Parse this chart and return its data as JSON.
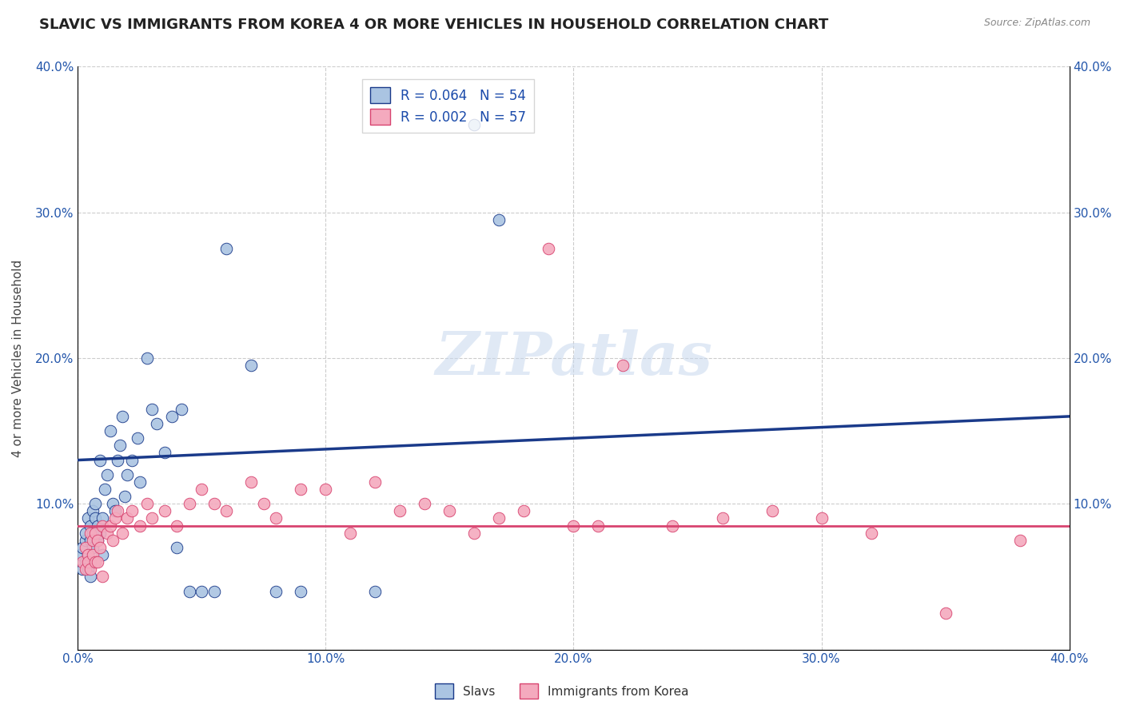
{
  "title": "SLAVIC VS IMMIGRANTS FROM KOREA 4 OR MORE VEHICLES IN HOUSEHOLD CORRELATION CHART",
  "source": "Source: ZipAtlas.com",
  "ylabel": "4 or more Vehicles in Household",
  "xlim": [
    0.0,
    0.4
  ],
  "ylim": [
    0.0,
    0.4
  ],
  "xtick_labels": [
    "0.0%",
    "10.0%",
    "20.0%",
    "30.0%",
    "40.0%"
  ],
  "xtick_vals": [
    0.0,
    0.1,
    0.2,
    0.3,
    0.4
  ],
  "ytick_labels_left": [
    "",
    "10.0%",
    "20.0%",
    "30.0%",
    "40.0%"
  ],
  "ytick_labels_right": [
    "",
    "10.0%",
    "20.0%",
    "30.0%",
    "40.0%"
  ],
  "ytick_vals": [
    0.0,
    0.1,
    0.2,
    0.3,
    0.4
  ],
  "slavs_R": 0.064,
  "slavs_N": 54,
  "korea_R": 0.002,
  "korea_N": 57,
  "slavs_color": "#aac4e2",
  "korea_color": "#f4aabe",
  "slavs_line_color": "#1a3a8a",
  "korea_line_color": "#d84470",
  "legend_text_color": "#1a4aaa",
  "watermark": "ZIPatlas",
  "title_fontsize": 13,
  "slavs_x": [
    0.001,
    0.002,
    0.002,
    0.003,
    0.003,
    0.003,
    0.004,
    0.004,
    0.004,
    0.005,
    0.005,
    0.005,
    0.005,
    0.006,
    0.006,
    0.006,
    0.007,
    0.007,
    0.008,
    0.008,
    0.009,
    0.009,
    0.01,
    0.01,
    0.011,
    0.012,
    0.013,
    0.014,
    0.015,
    0.016,
    0.017,
    0.018,
    0.019,
    0.02,
    0.022,
    0.024,
    0.025,
    0.028,
    0.03,
    0.032,
    0.035,
    0.038,
    0.04,
    0.042,
    0.045,
    0.05,
    0.055,
    0.06,
    0.07,
    0.08,
    0.09,
    0.12,
    0.16,
    0.17
  ],
  "slavs_y": [
    0.065,
    0.07,
    0.055,
    0.06,
    0.075,
    0.08,
    0.065,
    0.055,
    0.09,
    0.05,
    0.06,
    0.075,
    0.085,
    0.07,
    0.08,
    0.095,
    0.09,
    0.1,
    0.075,
    0.085,
    0.08,
    0.13,
    0.065,
    0.09,
    0.11,
    0.12,
    0.15,
    0.1,
    0.095,
    0.13,
    0.14,
    0.16,
    0.105,
    0.12,
    0.13,
    0.145,
    0.115,
    0.2,
    0.165,
    0.155,
    0.135,
    0.16,
    0.07,
    0.165,
    0.04,
    0.04,
    0.04,
    0.275,
    0.195,
    0.04,
    0.04,
    0.04,
    0.36,
    0.295
  ],
  "korea_x": [
    0.002,
    0.003,
    0.003,
    0.004,
    0.004,
    0.005,
    0.005,
    0.006,
    0.006,
    0.007,
    0.007,
    0.008,
    0.008,
    0.009,
    0.01,
    0.01,
    0.012,
    0.013,
    0.014,
    0.015,
    0.016,
    0.018,
    0.02,
    0.022,
    0.025,
    0.028,
    0.03,
    0.035,
    0.04,
    0.045,
    0.05,
    0.055,
    0.06,
    0.07,
    0.075,
    0.08,
    0.09,
    0.1,
    0.11,
    0.12,
    0.13,
    0.14,
    0.15,
    0.16,
    0.17,
    0.18,
    0.19,
    0.2,
    0.21,
    0.22,
    0.24,
    0.26,
    0.28,
    0.3,
    0.32,
    0.35,
    0.38
  ],
  "korea_y": [
    0.06,
    0.07,
    0.055,
    0.065,
    0.06,
    0.055,
    0.08,
    0.065,
    0.075,
    0.06,
    0.08,
    0.075,
    0.06,
    0.07,
    0.05,
    0.085,
    0.08,
    0.085,
    0.075,
    0.09,
    0.095,
    0.08,
    0.09,
    0.095,
    0.085,
    0.1,
    0.09,
    0.095,
    0.085,
    0.1,
    0.11,
    0.1,
    0.095,
    0.115,
    0.1,
    0.09,
    0.11,
    0.11,
    0.08,
    0.115,
    0.095,
    0.1,
    0.095,
    0.08,
    0.09,
    0.095,
    0.275,
    0.085,
    0.085,
    0.195,
    0.085,
    0.09,
    0.095,
    0.09,
    0.08,
    0.025,
    0.075
  ],
  "slavs_line_start_y": 0.13,
  "slavs_line_end_y": 0.16,
  "korea_line_y": 0.085
}
